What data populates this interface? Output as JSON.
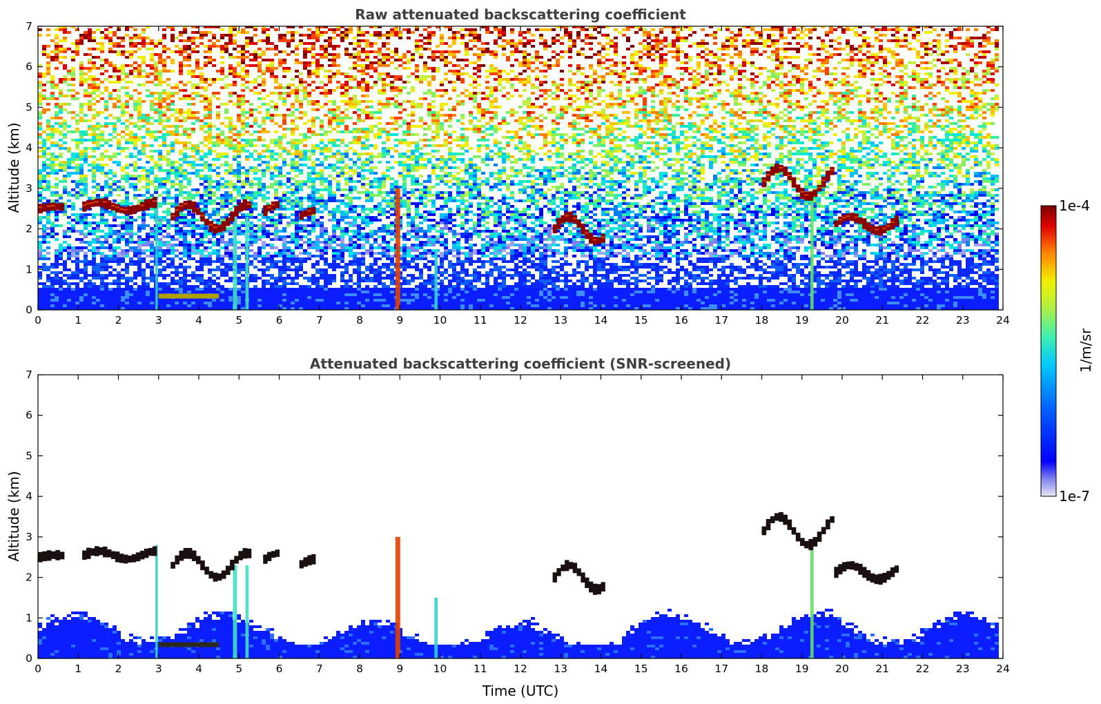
{
  "chart_data": [
    {
      "type": "heatmap",
      "title": "Raw attenuated backscattering coefficient",
      "xlabel": "",
      "ylabel": "Altitude (km)",
      "xlim": [
        0,
        24
      ],
      "ylim": [
        0,
        7
      ],
      "x_ticks": [
        "0",
        "1",
        "2",
        "3",
        "4",
        "5",
        "6",
        "7",
        "8",
        "9",
        "10",
        "11",
        "12",
        "13",
        "14",
        "15",
        "16",
        "17",
        "18",
        "19",
        "20",
        "21",
        "22",
        "23",
        "24"
      ],
      "y_ticks": [
        "0",
        "1",
        "2",
        "3",
        "4",
        "5",
        "6",
        "7"
      ],
      "data_end_hour": 23.8,
      "snr_screened": false,
      "features": [
        {
          "kind": "cloud-layer",
          "x": [
            0.0,
            0.65
          ],
          "y": [
            2.45,
            2.55
          ]
        },
        {
          "kind": "cloud-layer",
          "x": [
            1.1,
            2.95
          ],
          "y": [
            2.45,
            2.65
          ]
        },
        {
          "kind": "cloud-layer",
          "x": [
            3.3,
            5.3
          ],
          "y": [
            2.0,
            2.6
          ]
        },
        {
          "kind": "cloud-layer",
          "x": [
            5.6,
            6.0
          ],
          "y": [
            2.3,
            2.6
          ]
        },
        {
          "kind": "cloud-layer",
          "x": [
            6.5,
            6.9
          ],
          "y": [
            2.2,
            2.45
          ]
        },
        {
          "kind": "cloud-layer",
          "x": [
            12.8,
            14.1
          ],
          "y": [
            1.7,
            2.3
          ]
        },
        {
          "kind": "cloud-layer",
          "x": [
            18.0,
            19.8
          ],
          "y": [
            2.8,
            3.5
          ]
        },
        {
          "kind": "cloud-layer",
          "x": [
            19.8,
            21.4
          ],
          "y": [
            1.95,
            2.3
          ]
        },
        {
          "kind": "precipitation-streak",
          "x": 8.95,
          "y": [
            0,
            3.0
          ]
        },
        {
          "kind": "precipitation-streak",
          "x": 4.9,
          "y": [
            0,
            2.3
          ]
        },
        {
          "kind": "precipitation-streak",
          "x": 9.9,
          "y": [
            0,
            1.5
          ]
        }
      ]
    },
    {
      "type": "heatmap",
      "title": "Attenuated backscattering coefficient (SNR-screened)",
      "xlabel": "Time (UTC)",
      "ylabel": "Altitude (km)",
      "xlim": [
        0,
        24
      ],
      "ylim": [
        0,
        7
      ],
      "x_ticks": [
        "0",
        "1",
        "2",
        "3",
        "4",
        "5",
        "6",
        "7",
        "8",
        "9",
        "10",
        "11",
        "12",
        "13",
        "14",
        "15",
        "16",
        "17",
        "18",
        "19",
        "20",
        "21",
        "22",
        "23",
        "24"
      ],
      "y_ticks": [
        "0",
        "1",
        "2",
        "3",
        "4",
        "5",
        "6",
        "7"
      ],
      "data_end_hour": 23.8,
      "snr_screened": true
    }
  ],
  "colorbar": {
    "max_label": "1e-4",
    "min_label": "1e-7",
    "unit_label": "1/m/sr",
    "scale": "log",
    "colormap": "jet",
    "colors": [
      "#e8e8f8",
      "#c8c8f0",
      "#a0a0f0",
      "#8080f0",
      "#0000ff",
      "#0030ff",
      "#0080ff",
      "#00c0ff",
      "#00e8e0",
      "#30f0a0",
      "#80f060",
      "#c0f040",
      "#f0f000",
      "#ffc000",
      "#ff8000",
      "#ff4000",
      "#e00000",
      "#a00000",
      "#7a0000"
    ]
  }
}
